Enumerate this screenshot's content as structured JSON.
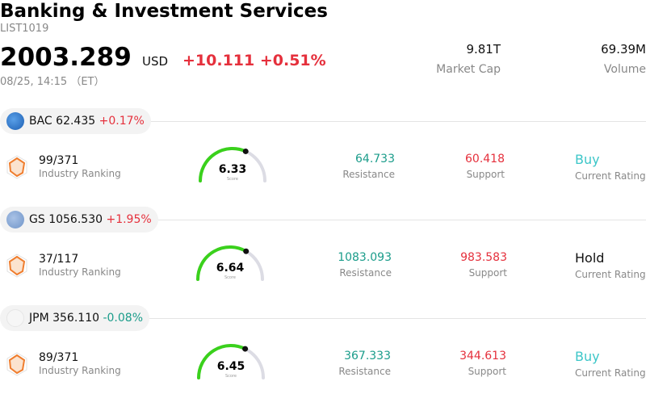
{
  "header": {
    "title": "Banking & Investment Services",
    "code": "LIST1019",
    "price": "2003.289",
    "currency": "USD",
    "change": "+10.111 +0.51%",
    "time": "08/25, 14:15 （ET）",
    "market_cap_value": "9.81T",
    "market_cap_label": "Market Cap",
    "volume_value": "69.39M",
    "volume_label": "Volume"
  },
  "stocks": [
    {
      "ticker": "BAC",
      "price": "62.435",
      "change": "+0.17%",
      "direction": "up",
      "rank_value": "99/371",
      "rank_label": "Industry Ranking",
      "score": "6.33",
      "score_label": "Score",
      "score_fraction": 0.633,
      "resistance": "64.733",
      "resistance_label": "Resistance",
      "support": "60.418",
      "support_label": "Support",
      "rating": "Buy",
      "rating_label": "Current Rating"
    },
    {
      "ticker": "GS",
      "price": "1056.530",
      "change": "+1.95%",
      "direction": "up",
      "rank_value": "37/117",
      "rank_label": "Industry Ranking",
      "score": "6.64",
      "score_label": "Score",
      "score_fraction": 0.664,
      "resistance": "1083.093",
      "resistance_label": "Resistance",
      "support": "983.583",
      "support_label": "Support",
      "rating": "Hold",
      "rating_label": "Current Rating"
    },
    {
      "ticker": "JPM",
      "price": "356.110",
      "change": "-0.08%",
      "direction": "down",
      "rank_value": "89/371",
      "rank_label": "Industry Ranking",
      "score": "6.45",
      "score_label": "Score",
      "score_fraction": 0.645,
      "resistance": "367.333",
      "resistance_label": "Resistance",
      "support": "344.613",
      "support_label": "Support",
      "rating": "Buy",
      "rating_label": "Current Rating"
    }
  ],
  "colors": {
    "up": "#e5303c",
    "down": "#1a9c8a",
    "gauge_fill": "#3ad11c",
    "gauge_track": "#dcdce4",
    "buy": "#3cc6c8"
  }
}
